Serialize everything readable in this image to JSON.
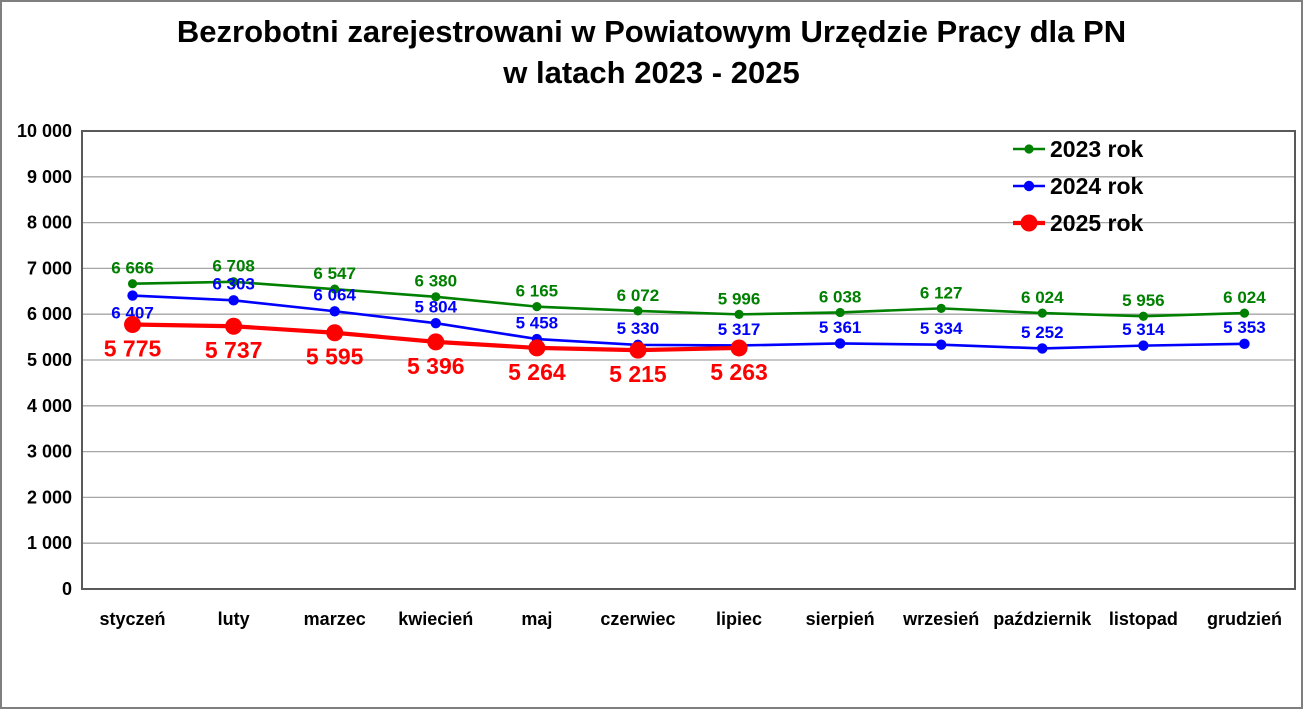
{
  "title": {
    "line1": "Bezrobotni zarejestrowani w Powiatowym Urzędzie Pracy dla PN",
    "line2": "w latach 2023 - 2025"
  },
  "colors": {
    "background": "#ffffff",
    "figure_border": "#7f7f7f",
    "plot_border": "#595959",
    "gridline": "#a6a6a6",
    "axis_text": "#000000",
    "legend_text": "#000000",
    "series_2023": "#008000",
    "series_2024": "#0000ff",
    "series_2025": "#ff0000"
  },
  "chart_data": {
    "type": "line",
    "title": "Bezrobotni zarejestrowani w Powiatowym Urzędzie Pracy dla PN w latach 2023 - 2025",
    "categories": [
      "styczeń",
      "luty",
      "marzec",
      "kwiecień",
      "maj",
      "czerwiec",
      "lipiec",
      "sierpień",
      "wrzesień",
      "październik",
      "listopad",
      "grudzień"
    ],
    "xlabel": "",
    "ylabel": "",
    "ylim": [
      0,
      10000
    ],
    "ytick_step": 1000,
    "grid": "horizontal",
    "legend_position": "top-right-inside",
    "number_format": "space-thousands",
    "data_labels": true,
    "series": [
      {
        "name": "2023 rok",
        "color": "#008000",
        "values": [
          6666,
          6708,
          6547,
          6380,
          6165,
          6072,
          5996,
          6038,
          6127,
          6024,
          5956,
          6024
        ],
        "label_position": "above",
        "label_overrides": {},
        "style": {
          "line_width": 2.6,
          "marker_radius": 4.6,
          "label_size": 17
        }
      },
      {
        "name": "2024 rok",
        "color": "#0000ff",
        "values": [
          6407,
          6303,
          6064,
          5804,
          5458,
          5330,
          5317,
          5361,
          5334,
          5252,
          5314,
          5353
        ],
        "label_position": "above",
        "label_overrides": {
          "0": "below"
        },
        "style": {
          "line_width": 2.6,
          "marker_radius": 5.2,
          "label_size": 17
        }
      },
      {
        "name": "2025 rok",
        "color": "#ff0000",
        "values": [
          5775,
          5737,
          5595,
          5396,
          5264,
          5215,
          5263
        ],
        "label_position": "below",
        "label_overrides": {},
        "style": {
          "line_width": 4.2,
          "marker_radius": 8.5,
          "label_size": 23
        }
      }
    ]
  }
}
